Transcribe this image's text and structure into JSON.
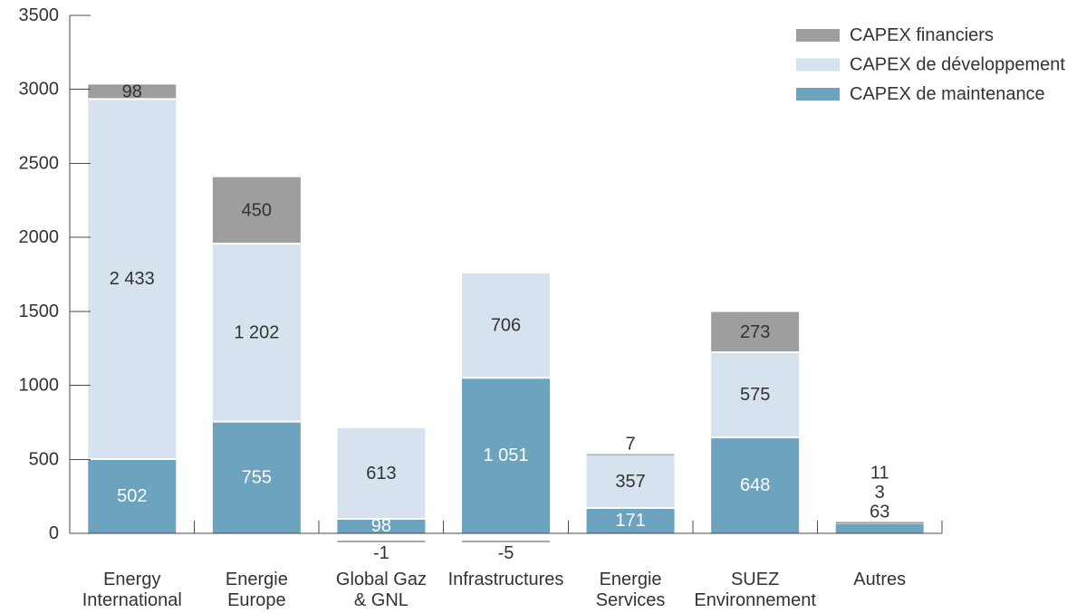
{
  "chart_data": {
    "type": "bar",
    "stacked": true,
    "categories": [
      [
        "Energy",
        "International"
      ],
      [
        "Energie",
        "Europe"
      ],
      [
        "Global Gaz",
        "& GNL"
      ],
      [
        "Infrastructures"
      ],
      [
        "Energie",
        "Services"
      ],
      [
        "SUEZ",
        "Environnement"
      ],
      [
        "Autres"
      ]
    ],
    "series": [
      {
        "name": "CAPEX de maintenance",
        "color": "#6ca3be",
        "label_color": "#ffffff",
        "values": [
          502,
          755,
          98,
          1051,
          171,
          648,
          63
        ],
        "labels": [
          "502",
          "755",
          "98",
          "1 051",
          "171",
          "648",
          "63"
        ]
      },
      {
        "name": "CAPEX de développement",
        "color": "#d6e3ee",
        "label_color": "#333333",
        "values": [
          2433,
          1202,
          613,
          706,
          357,
          575,
          3
        ],
        "labels": [
          "2 433",
          "1 202",
          "613",
          "706",
          "357",
          "575",
          "3"
        ]
      },
      {
        "name": "CAPEX financiers",
        "color": "#9e9e9e",
        "label_color": "#333333",
        "values": [
          98,
          450,
          -1,
          -5,
          7,
          273,
          11
        ],
        "labels": [
          "98",
          "450",
          "-1",
          "-5",
          "7",
          "273",
          "11"
        ]
      }
    ],
    "ylim": [
      0,
      3500
    ],
    "yticks": [
      0,
      500,
      1000,
      1500,
      2000,
      2500,
      3000,
      3500
    ],
    "grid": false,
    "legend": {
      "placement": "top-right"
    }
  }
}
